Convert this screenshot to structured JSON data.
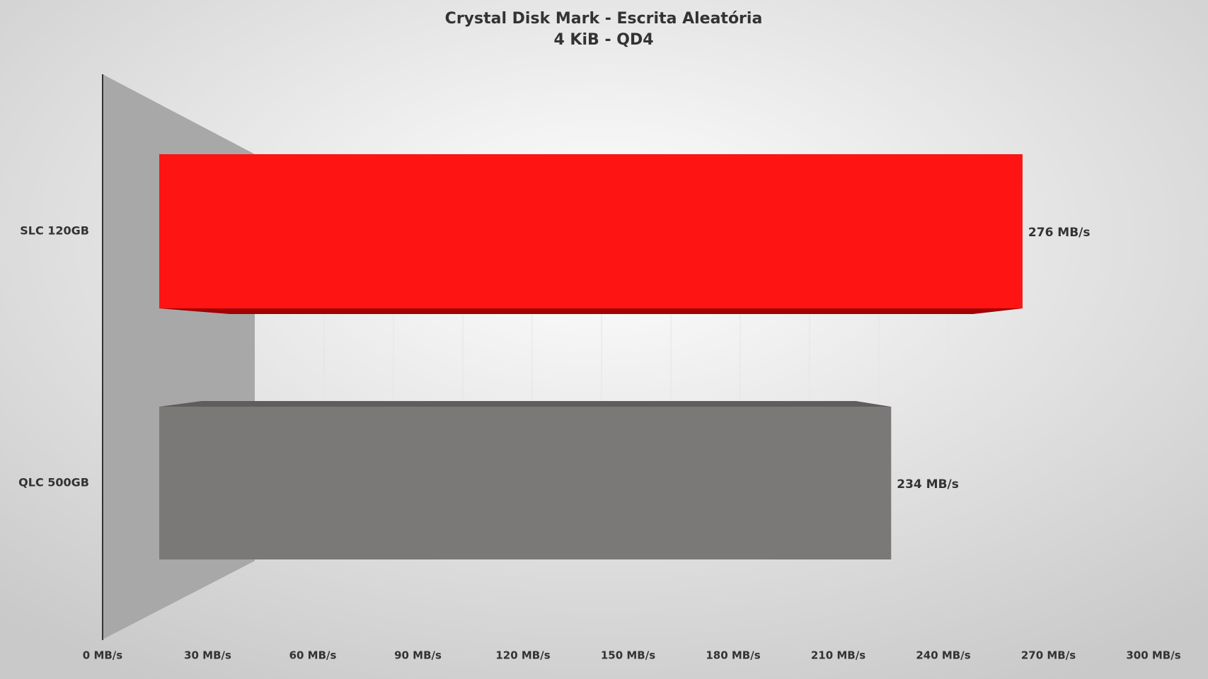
{
  "chart_data": {
    "type": "bar",
    "orientation": "horizontal",
    "title": "Crystal Disk Mark - Escrita Aleatória",
    "subtitle": "4 KiB - QD4",
    "categories": [
      "SLC 120GB",
      "QLC 500GB"
    ],
    "values": [
      276,
      234
    ],
    "value_labels": [
      "276 MB/s",
      "234 MB/s"
    ],
    "colors": [
      "#ff1414",
      "#7b7878"
    ],
    "xlim": [
      0,
      300
    ],
    "xticks": [
      {
        "value": 0,
        "label": "0 MB/s"
      },
      {
        "value": 30,
        "label": "30 MB/s"
      },
      {
        "value": 60,
        "label": "60 MB/s"
      },
      {
        "value": 90,
        "label": "90 MB/s"
      },
      {
        "value": 120,
        "label": "120 MB/s"
      },
      {
        "value": 150,
        "label": "150 MB/s"
      },
      {
        "value": 180,
        "label": "180 MB/s"
      },
      {
        "value": 210,
        "label": "210 MB/s"
      },
      {
        "value": 240,
        "label": "240 MB/s"
      },
      {
        "value": 270,
        "label": "270 MB/s"
      },
      {
        "value": 300,
        "label": "300 MB/s"
      }
    ]
  }
}
